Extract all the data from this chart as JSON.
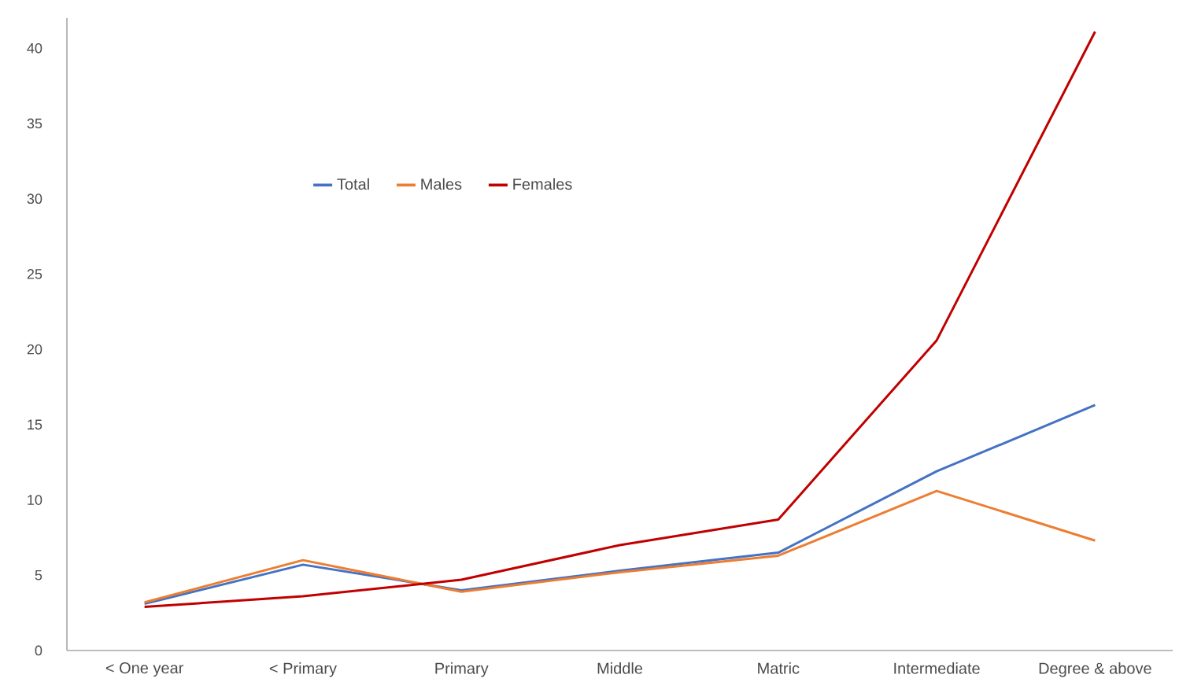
{
  "chart_data": {
    "type": "line",
    "categories": [
      "< One year",
      "< Primary",
      "Primary",
      "Middle",
      "Matric",
      "Intermediate",
      "Degree & above"
    ],
    "series": [
      {
        "name": "Total",
        "color": "#4472c4",
        "values": [
          3.1,
          5.7,
          4.0,
          5.3,
          6.5,
          11.9,
          16.3
        ]
      },
      {
        "name": "Males",
        "color": "#ed7d31",
        "values": [
          3.2,
          6.0,
          3.9,
          5.2,
          6.3,
          10.6,
          7.3
        ]
      },
      {
        "name": "Females",
        "color": "#c00000",
        "values": [
          2.9,
          3.6,
          4.7,
          7.0,
          8.7,
          20.6,
          41.1
        ]
      }
    ],
    "ylim": [
      0,
      42
    ],
    "yticks": [
      0,
      5,
      10,
      15,
      20,
      25,
      30,
      35,
      40
    ],
    "legend": "top left"
  }
}
